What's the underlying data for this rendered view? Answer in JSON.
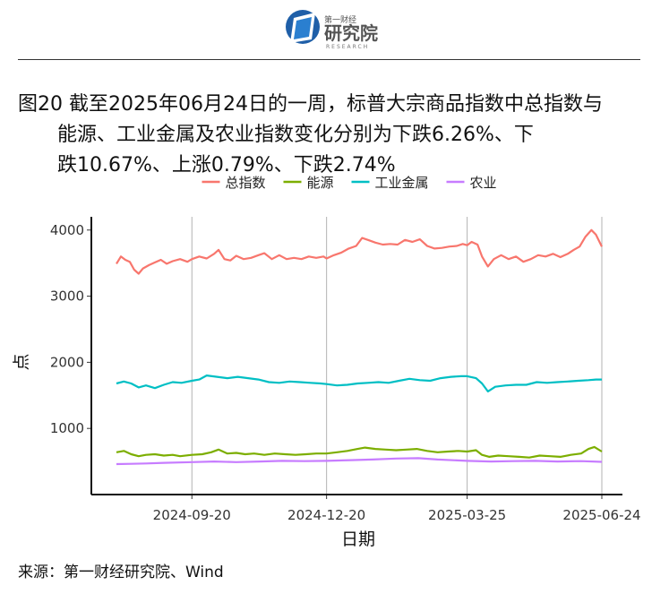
{
  "brand": {
    "name_cn": "第一财经",
    "name_big": "研究院",
    "name_en": "RESEARCH"
  },
  "title": {
    "lines": [
      "图20  截至2025年06月24日的一周，标普大宗商品指数中总指数与",
      "能源、工业金属及农业指数变化分别为下跌6.26%、下",
      "跌10.67%、上涨0.79%、下跌2.74%"
    ]
  },
  "source": "来源：第一财经研究院、Wind",
  "chart_data": {
    "type": "line",
    "xlabel": "日期",
    "ylabel": "点",
    "ylim": [
      0,
      4200
    ],
    "yticks": [
      1000,
      2000,
      3000,
      4000
    ],
    "x_range": [
      "2024-07-31",
      "2025-06-24"
    ],
    "xticks": [
      "2024-09-20",
      "2024-12-20",
      "2025-03-25",
      "2025-06-24"
    ],
    "grid": "vertical",
    "legend_position": "top",
    "series": [
      {
        "name": "总指数",
        "color": "#F8766D",
        "points": [
          [
            "2024-07-31",
            3490
          ],
          [
            "2024-08-03",
            3600
          ],
          [
            "2024-08-06",
            3550
          ],
          [
            "2024-08-09",
            3520
          ],
          [
            "2024-08-12",
            3400
          ],
          [
            "2024-08-15",
            3340
          ],
          [
            "2024-08-18",
            3420
          ],
          [
            "2024-08-22",
            3470
          ],
          [
            "2024-08-26",
            3510
          ],
          [
            "2024-08-30",
            3550
          ],
          [
            "2024-09-03",
            3490
          ],
          [
            "2024-09-07",
            3530
          ],
          [
            "2024-09-12",
            3560
          ],
          [
            "2024-09-17",
            3520
          ],
          [
            "2024-09-20",
            3560
          ],
          [
            "2024-09-25",
            3600
          ],
          [
            "2024-09-30",
            3570
          ],
          [
            "2024-10-05",
            3640
          ],
          [
            "2024-10-08",
            3700
          ],
          [
            "2024-10-12",
            3560
          ],
          [
            "2024-10-16",
            3540
          ],
          [
            "2024-10-20",
            3610
          ],
          [
            "2024-10-25",
            3560
          ],
          [
            "2024-10-30",
            3580
          ],
          [
            "2024-11-04",
            3620
          ],
          [
            "2024-11-08",
            3650
          ],
          [
            "2024-11-13",
            3560
          ],
          [
            "2024-11-18",
            3620
          ],
          [
            "2024-11-23",
            3560
          ],
          [
            "2024-11-28",
            3580
          ],
          [
            "2024-12-03",
            3560
          ],
          [
            "2024-12-08",
            3600
          ],
          [
            "2024-12-13",
            3580
          ],
          [
            "2024-12-18",
            3600
          ],
          [
            "2024-12-20",
            3570
          ],
          [
            "2024-12-25",
            3620
          ],
          [
            "2024-12-30",
            3660
          ],
          [
            "2025-01-04",
            3720
          ],
          [
            "2025-01-09",
            3760
          ],
          [
            "2025-01-13",
            3880
          ],
          [
            "2025-01-17",
            3850
          ],
          [
            "2025-01-22",
            3810
          ],
          [
            "2025-01-27",
            3780
          ],
          [
            "2025-02-01",
            3790
          ],
          [
            "2025-02-06",
            3780
          ],
          [
            "2025-02-11",
            3850
          ],
          [
            "2025-02-16",
            3820
          ],
          [
            "2025-02-21",
            3860
          ],
          [
            "2025-02-26",
            3760
          ],
          [
            "2025-03-03",
            3720
          ],
          [
            "2025-03-08",
            3730
          ],
          [
            "2025-03-13",
            3750
          ],
          [
            "2025-03-18",
            3760
          ],
          [
            "2025-03-22",
            3790
          ],
          [
            "2025-03-25",
            3770
          ],
          [
            "2025-03-28",
            3820
          ],
          [
            "2025-04-01",
            3780
          ],
          [
            "2025-04-04",
            3600
          ],
          [
            "2025-04-08",
            3450
          ],
          [
            "2025-04-12",
            3560
          ],
          [
            "2025-04-17",
            3620
          ],
          [
            "2025-04-22",
            3560
          ],
          [
            "2025-04-27",
            3600
          ],
          [
            "2025-05-02",
            3520
          ],
          [
            "2025-05-07",
            3560
          ],
          [
            "2025-05-12",
            3620
          ],
          [
            "2025-05-17",
            3600
          ],
          [
            "2025-05-22",
            3640
          ],
          [
            "2025-05-27",
            3590
          ],
          [
            "2025-06-01",
            3640
          ],
          [
            "2025-06-05",
            3700
          ],
          [
            "2025-06-09",
            3750
          ],
          [
            "2025-06-13",
            3900
          ],
          [
            "2025-06-17",
            4000
          ],
          [
            "2025-06-20",
            3930
          ],
          [
            "2025-06-24",
            3750
          ]
        ]
      },
      {
        "name": "能源",
        "color": "#7CAE00",
        "points": [
          [
            "2024-07-31",
            640
          ],
          [
            "2024-08-05",
            660
          ],
          [
            "2024-08-10",
            610
          ],
          [
            "2024-08-15",
            580
          ],
          [
            "2024-08-20",
            600
          ],
          [
            "2024-08-26",
            610
          ],
          [
            "2024-09-01",
            590
          ],
          [
            "2024-09-07",
            600
          ],
          [
            "2024-09-12",
            580
          ],
          [
            "2024-09-20",
            600
          ],
          [
            "2024-09-27",
            610
          ],
          [
            "2024-10-03",
            640
          ],
          [
            "2024-10-08",
            680
          ],
          [
            "2024-10-14",
            620
          ],
          [
            "2024-10-20",
            630
          ],
          [
            "2024-10-26",
            610
          ],
          [
            "2024-11-01",
            620
          ],
          [
            "2024-11-08",
            600
          ],
          [
            "2024-11-15",
            620
          ],
          [
            "2024-11-22",
            610
          ],
          [
            "2024-11-29",
            600
          ],
          [
            "2024-12-06",
            610
          ],
          [
            "2024-12-13",
            620
          ],
          [
            "2024-12-20",
            620
          ],
          [
            "2024-12-27",
            640
          ],
          [
            "2025-01-03",
            660
          ],
          [
            "2025-01-10",
            690
          ],
          [
            "2025-01-15",
            710
          ],
          [
            "2025-01-22",
            690
          ],
          [
            "2025-01-29",
            680
          ],
          [
            "2025-02-05",
            670
          ],
          [
            "2025-02-12",
            680
          ],
          [
            "2025-02-19",
            690
          ],
          [
            "2025-02-26",
            660
          ],
          [
            "2025-03-05",
            640
          ],
          [
            "2025-03-12",
            650
          ],
          [
            "2025-03-19",
            660
          ],
          [
            "2025-03-25",
            650
          ],
          [
            "2025-03-31",
            670
          ],
          [
            "2025-04-04",
            600
          ],
          [
            "2025-04-09",
            570
          ],
          [
            "2025-04-15",
            590
          ],
          [
            "2025-04-22",
            580
          ],
          [
            "2025-04-29",
            570
          ],
          [
            "2025-05-06",
            560
          ],
          [
            "2025-05-13",
            590
          ],
          [
            "2025-05-20",
            580
          ],
          [
            "2025-05-27",
            570
          ],
          [
            "2025-06-03",
            600
          ],
          [
            "2025-06-10",
            620
          ],
          [
            "2025-06-15",
            690
          ],
          [
            "2025-06-19",
            720
          ],
          [
            "2025-06-24",
            650
          ]
        ]
      },
      {
        "name": "工业金属",
        "color": "#00BFC4",
        "points": [
          [
            "2024-07-31",
            1680
          ],
          [
            "2024-08-05",
            1710
          ],
          [
            "2024-08-10",
            1680
          ],
          [
            "2024-08-15",
            1620
          ],
          [
            "2024-08-20",
            1650
          ],
          [
            "2024-08-26",
            1610
          ],
          [
            "2024-09-01",
            1660
          ],
          [
            "2024-09-07",
            1700
          ],
          [
            "2024-09-13",
            1690
          ],
          [
            "2024-09-20",
            1720
          ],
          [
            "2024-09-25",
            1740
          ],
          [
            "2024-09-30",
            1800
          ],
          [
            "2024-10-07",
            1780
          ],
          [
            "2024-10-14",
            1760
          ],
          [
            "2024-10-21",
            1780
          ],
          [
            "2024-10-28",
            1760
          ],
          [
            "2024-11-04",
            1740
          ],
          [
            "2024-11-11",
            1700
          ],
          [
            "2024-11-18",
            1690
          ],
          [
            "2024-11-25",
            1710
          ],
          [
            "2024-12-02",
            1700
          ],
          [
            "2024-12-09",
            1690
          ],
          [
            "2024-12-16",
            1680
          ],
          [
            "2024-12-20",
            1670
          ],
          [
            "2024-12-27",
            1650
          ],
          [
            "2025-01-03",
            1660
          ],
          [
            "2025-01-10",
            1680
          ],
          [
            "2025-01-17",
            1690
          ],
          [
            "2025-01-24",
            1700
          ],
          [
            "2025-01-31",
            1690
          ],
          [
            "2025-02-07",
            1720
          ],
          [
            "2025-02-14",
            1750
          ],
          [
            "2025-02-21",
            1730
          ],
          [
            "2025-02-28",
            1720
          ],
          [
            "2025-03-07",
            1760
          ],
          [
            "2025-03-14",
            1780
          ],
          [
            "2025-03-21",
            1790
          ],
          [
            "2025-03-25",
            1790
          ],
          [
            "2025-03-31",
            1760
          ],
          [
            "2025-04-04",
            1680
          ],
          [
            "2025-04-08",
            1560
          ],
          [
            "2025-04-13",
            1630
          ],
          [
            "2025-04-20",
            1650
          ],
          [
            "2025-04-27",
            1660
          ],
          [
            "2025-05-04",
            1660
          ],
          [
            "2025-05-11",
            1700
          ],
          [
            "2025-05-18",
            1690
          ],
          [
            "2025-05-25",
            1700
          ],
          [
            "2025-06-01",
            1710
          ],
          [
            "2025-06-08",
            1720
          ],
          [
            "2025-06-15",
            1730
          ],
          [
            "2025-06-20",
            1740
          ],
          [
            "2025-06-24",
            1740
          ]
        ]
      },
      {
        "name": "农业",
        "color": "#C77CFF",
        "points": [
          [
            "2024-07-31",
            460
          ],
          [
            "2024-08-10",
            465
          ],
          [
            "2024-08-20",
            470
          ],
          [
            "2024-09-01",
            480
          ],
          [
            "2024-09-20",
            490
          ],
          [
            "2024-10-05",
            500
          ],
          [
            "2024-10-20",
            490
          ],
          [
            "2024-11-05",
            500
          ],
          [
            "2024-11-20",
            510
          ],
          [
            "2024-12-05",
            505
          ],
          [
            "2024-12-20",
            510
          ],
          [
            "2025-01-05",
            520
          ],
          [
            "2025-01-20",
            530
          ],
          [
            "2025-02-05",
            545
          ],
          [
            "2025-02-20",
            550
          ],
          [
            "2025-03-05",
            530
          ],
          [
            "2025-03-25",
            510
          ],
          [
            "2025-04-10",
            500
          ],
          [
            "2025-04-25",
            505
          ],
          [
            "2025-05-10",
            510
          ],
          [
            "2025-05-25",
            500
          ],
          [
            "2025-06-10",
            505
          ],
          [
            "2025-06-24",
            495
          ]
        ]
      }
    ]
  }
}
